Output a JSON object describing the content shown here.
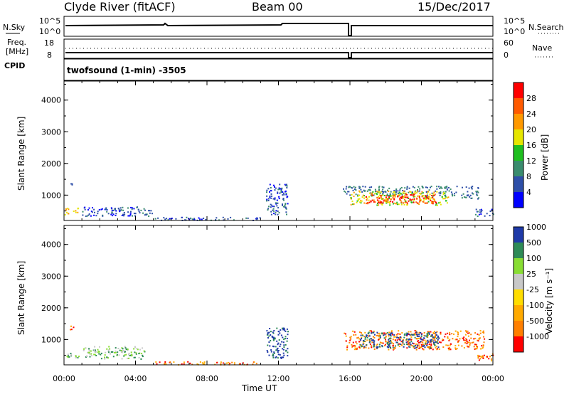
{
  "header": {
    "station": "Clyde River (fitACF)",
    "beam": "Beam 00",
    "date": "15/Dec/2017"
  },
  "panels": {
    "nsky": {
      "label": "N.Sky",
      "top": "10^5",
      "bottom": "10^0"
    },
    "nsearch": {
      "label": "N.Search",
      "top": "10^5",
      "bottom": "10^0"
    },
    "freq": {
      "label_1": "Freq.",
      "label_2": "[MHz]",
      "top": "18",
      "bottom": "8"
    },
    "nave": {
      "label": "Nave",
      "top": "60",
      "bottom": "0"
    },
    "cpid": {
      "label": "CPID",
      "value": "twofsound (1-min) -3505"
    }
  },
  "colors": {
    "power_scale": [
      "#0000ff",
      "#2e4fa8",
      "#3a8c6e",
      "#1fbf1f",
      "#e6e600",
      "#ff9900",
      "#ff5a00",
      "#ff0000"
    ],
    "velocity_scale": [
      "#ff0000",
      "#ff7f00",
      "#ffaa00",
      "#ffdd00",
      "#c8c8c8",
      "#88dd33",
      "#2e8b57",
      "#1f3aa8"
    ],
    "gray": "#c8c8c8"
  },
  "chart_data": [
    {
      "type": "heatmap",
      "name": "power",
      "ylabel": "Slant Range [km]",
      "xlabel": "",
      "xlim": [
        0,
        24
      ],
      "ylim": [
        200,
        4600
      ],
      "yticks": [
        "1000",
        "2000",
        "3000",
        "4000"
      ],
      "colorbar_label": "Power [dB]",
      "colorbar_ticks": [
        "4",
        "8",
        "12",
        "16",
        "20",
        "24",
        "28"
      ],
      "clim": [
        0,
        32
      ],
      "blobs": [
        {
          "t0": 0.0,
          "t1": 0.8,
          "r0": 400,
          "r1": 620,
          "level": 20
        },
        {
          "t0": 0.3,
          "t1": 0.5,
          "r0": 1300,
          "r1": 1450,
          "level": 6
        },
        {
          "t0": 1.0,
          "t1": 5.0,
          "r0": 350,
          "r1": 650,
          "level": 6
        },
        {
          "t0": 5.0,
          "t1": 11.0,
          "r0": 220,
          "r1": 320,
          "level": 6
        },
        {
          "t0": 11.3,
          "t1": 12.5,
          "r0": 400,
          "r1": 1400,
          "level": 6
        },
        {
          "t0": 15.6,
          "t1": 22.0,
          "r0": 1000,
          "r1": 1300,
          "level": 8
        },
        {
          "t0": 16.0,
          "t1": 21.5,
          "r0": 700,
          "r1": 1150,
          "level": 18
        },
        {
          "t0": 16.8,
          "t1": 20.8,
          "r0": 750,
          "r1": 1050,
          "level": 28
        },
        {
          "t0": 22.2,
          "t1": 23.2,
          "r0": 900,
          "r1": 1300,
          "level": 8
        },
        {
          "t0": 23.0,
          "t1": 24.0,
          "r0": 350,
          "r1": 600,
          "level": 6
        }
      ]
    },
    {
      "type": "heatmap",
      "name": "velocity",
      "ylabel": "Slant Range [km]",
      "xlabel": "Time UT",
      "xlim": [
        0,
        24
      ],
      "ylim": [
        200,
        4600
      ],
      "yticks": [
        "1000",
        "2000",
        "3000",
        "4000"
      ],
      "xticks": [
        "00:00",
        "04:00",
        "08:00",
        "12:00",
        "16:00",
        "20:00",
        "00:00"
      ],
      "colorbar_label": "Velocity [m s⁻¹]",
      "colorbar_ticks": [
        "-1000",
        "-500",
        "-100",
        "-25",
        "25",
        "100",
        "500",
        "1000"
      ],
      "blobs": [
        {
          "t0": 0.0,
          "t1": 0.8,
          "r0": 400,
          "r1": 620,
          "level": 5
        },
        {
          "t0": 0.3,
          "t1": 0.5,
          "r0": 1200,
          "r1": 1450,
          "level": 1
        },
        {
          "t0": 1.0,
          "t1": 4.5,
          "r0": 400,
          "r1": 800,
          "level": 5
        },
        {
          "t0": 5.0,
          "t1": 11.0,
          "r0": 220,
          "r1": 320,
          "level": 1
        },
        {
          "t0": 11.3,
          "t1": 12.5,
          "r0": 400,
          "r1": 1400,
          "level": 7
        },
        {
          "t0": 15.6,
          "t1": 22.0,
          "r0": 700,
          "r1": 1300,
          "level": 1
        },
        {
          "t0": 16.5,
          "t1": 21.0,
          "r0": 750,
          "r1": 1250,
          "level": 7
        },
        {
          "t0": 22.0,
          "t1": 23.5,
          "r0": 700,
          "r1": 1300,
          "level": 1
        },
        {
          "t0": 23.0,
          "t1": 24.0,
          "r0": 350,
          "r1": 600,
          "level": 1
        }
      ]
    }
  ]
}
